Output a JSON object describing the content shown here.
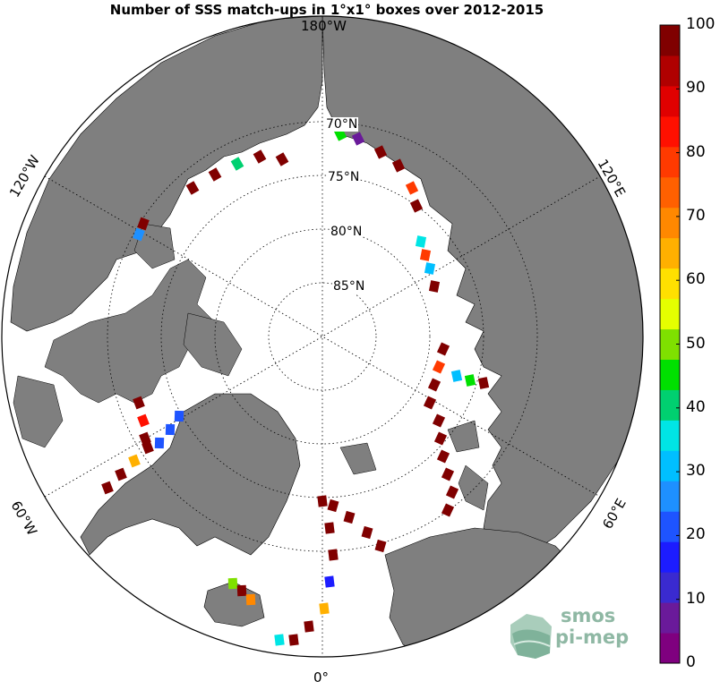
{
  "title": "Number of SSS match-ups in 1°x1° boxes over 2012-2015",
  "longitude_labels": {
    "top": "180°W",
    "left_upper": "120°W",
    "right_upper": "120°E",
    "left_lower": "60°W",
    "right_lower": "60°E",
    "bottom": "0°"
  },
  "latitude_labels": [
    "70°N",
    "75°N",
    "80°N",
    "85°N"
  ],
  "colorbar": {
    "min": 0,
    "max": 100,
    "tick_labels": [
      "100",
      "90",
      "80",
      "70",
      "60",
      "50",
      "40",
      "30",
      "20",
      "10",
      "0"
    ],
    "colors": [
      "#7f007f",
      "#6a1a9a",
      "#3a2ad0",
      "#1c1cff",
      "#1e54ff",
      "#1e90ff",
      "#00bfff",
      "#00e5e5",
      "#00d070",
      "#00e000",
      "#7fe000",
      "#e5ff00",
      "#ffe000",
      "#ffb000",
      "#ff8800",
      "#ff6000",
      "#ff3a00",
      "#ff1000",
      "#e00000",
      "#b00000",
      "#800000"
    ]
  },
  "logo": {
    "line1": "smos",
    "line2": "pi-mep"
  },
  "colors": {
    "land": "#7f7f7f",
    "ocean": "#ffffff",
    "coast": "#000000"
  }
}
